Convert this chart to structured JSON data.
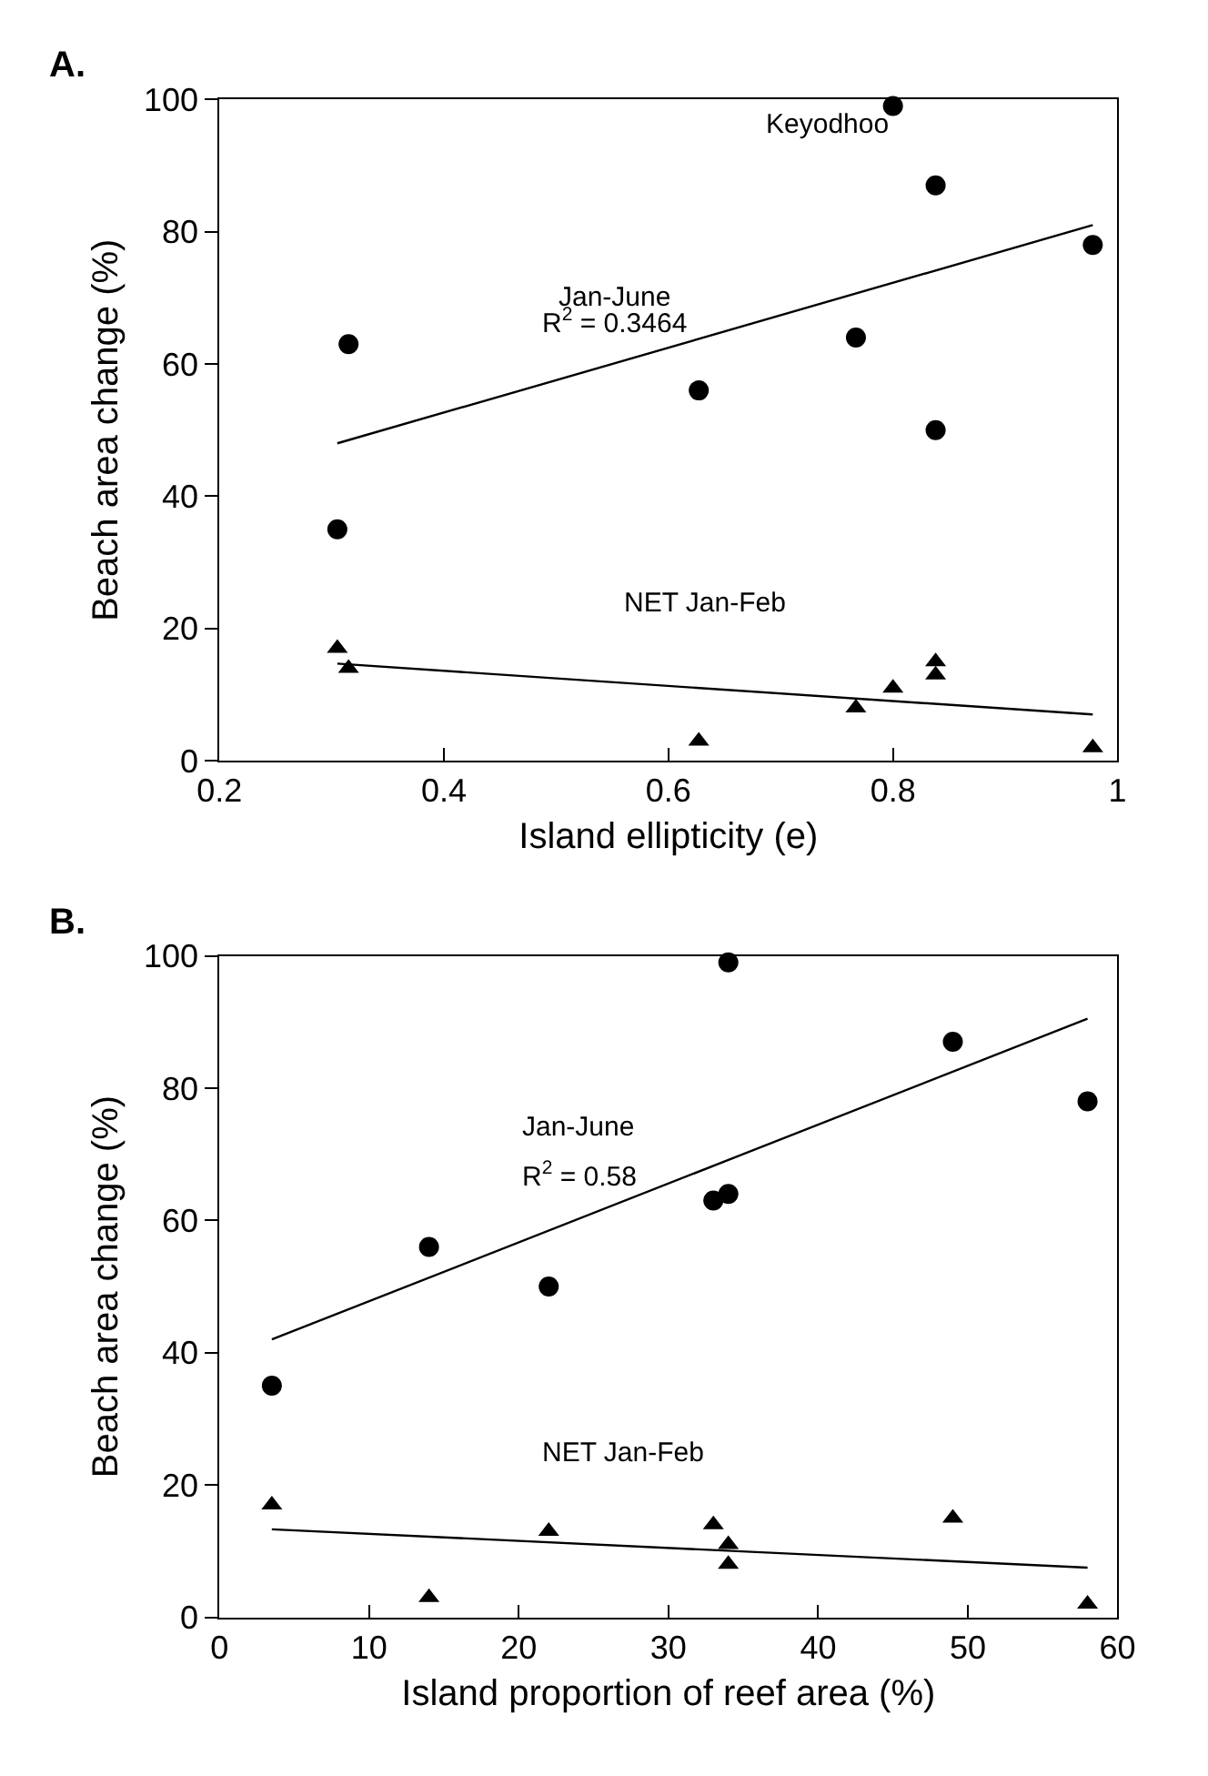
{
  "chart_data": [
    {
      "type": "scatter",
      "title": "A.",
      "xlabel": "Island ellipticity (e)",
      "ylabel": "Beach area change (%)",
      "xlim": [
        0.2,
        1
      ],
      "xticks": [
        0.2,
        0.4,
        0.6,
        0.8,
        1
      ],
      "ylim": [
        0,
        100
      ],
      "yticks": [
        0,
        20,
        40,
        60,
        80,
        100
      ],
      "series": [
        {
          "type": "scatter",
          "marker": "circle",
          "color": "#000000",
          "x": [
            0.305,
            0.315,
            0.627,
            0.767,
            0.8,
            0.838,
            0.838,
            0.978
          ],
          "values": [
            35,
            63,
            56,
            64,
            99,
            87,
            50,
            78
          ]
        },
        {
          "type": "scatter",
          "marker": "triangle",
          "color": "#000000",
          "x": [
            0.305,
            0.315,
            0.627,
            0.767,
            0.8,
            0.838,
            0.838,
            0.978
          ],
          "values": [
            17,
            14,
            3,
            8,
            11,
            15,
            13,
            2
          ]
        },
        {
          "type": "line",
          "line_style": "solid",
          "color": "#000000",
          "x": [
            0.305,
            0.978
          ],
          "values": [
            48,
            81
          ]
        },
        {
          "type": "line",
          "line_style": "solid",
          "color": "#000000",
          "x": [
            0.305,
            0.978
          ],
          "values": [
            14.7,
            7
          ]
        }
      ],
      "annotations": [
        {
          "text": "Keyodhoo",
          "x": 0.8,
          "y": 99
        },
        "Jan-June",
        "R$^{2}$ = 0.3464",
        "NET Jan-Feb"
      ]
    },
    {
      "type": "scatter",
      "title": "B.",
      "xlabel": "Island proportion of reef area (%)",
      "ylabel": "Beach area change (%)",
      "xlim": [
        0,
        60
      ],
      "xticks": [
        0,
        10,
        20,
        30,
        40,
        50,
        60
      ],
      "ylim": [
        0,
        100
      ],
      "yticks": [
        0,
        20,
        40,
        60,
        80,
        100
      ],
      "series": [
        {
          "type": "scatter",
          "marker": "circle",
          "color": "#000000",
          "x": [
            3.5,
            14,
            22,
            33,
            34,
            34,
            49,
            58
          ],
          "values": [
            35,
            56,
            50,
            63,
            64,
            99,
            87,
            78
          ]
        },
        {
          "type": "scatter",
          "marker": "triangle",
          "color": "#000000",
          "x": [
            3.5,
            14,
            22,
            33,
            34,
            34,
            49,
            58
          ],
          "values": [
            17,
            3,
            13,
            14,
            11,
            8,
            15,
            2
          ]
        },
        {
          "type": "line",
          "line_style": "solid",
          "color": "#000000",
          "x": [
            3.5,
            58
          ],
          "values": [
            42,
            90.5
          ]
        },
        {
          "type": "line",
          "line_style": "solid",
          "color": "#000000",
          "x": [
            3.5,
            58
          ],
          "values": [
            13.3,
            7.5
          ]
        }
      ],
      "annotations": [
        "Jan-June",
        "R$^{2}$ = 0.58",
        "NET Jan-Feb"
      ]
    }
  ]
}
